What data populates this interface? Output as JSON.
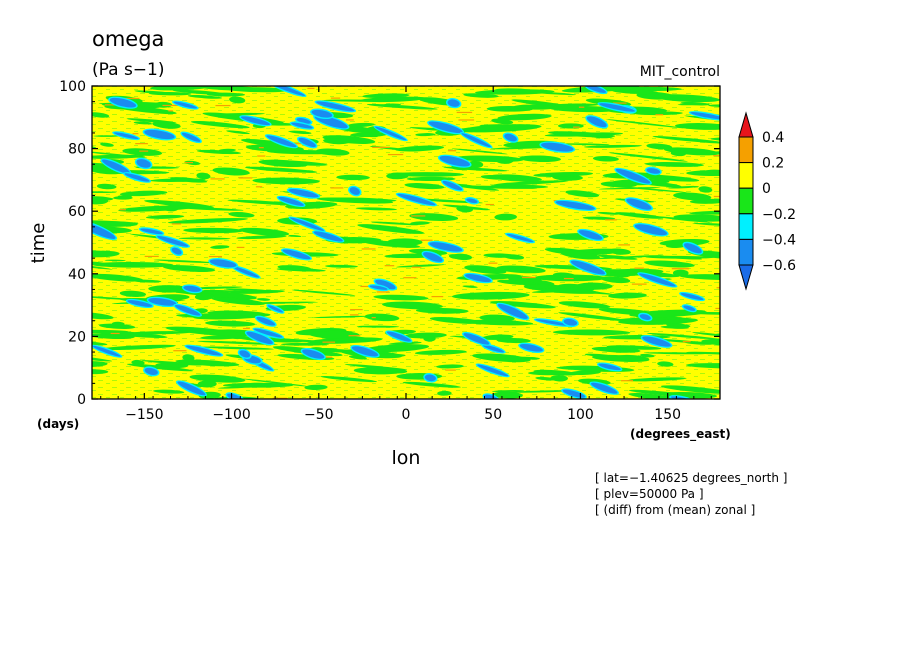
{
  "chart_data": {
    "type": "heatmap",
    "title": "omega",
    "subtitle": "(Pa s−1)",
    "source_label": "MIT_control",
    "xlabel": "lon",
    "ylabel": "time",
    "x_unit": "(degrees_east)",
    "y_unit": "(days)",
    "xlim": [
      -180,
      180
    ],
    "ylim": [
      0,
      100
    ],
    "x_ticks": [
      -150,
      -100,
      -50,
      0,
      50,
      100,
      150
    ],
    "x_tick_labels": [
      "−150",
      "−100",
      "−50",
      "0",
      "50",
      "100",
      "150"
    ],
    "y_ticks": [
      0,
      20,
      40,
      60,
      80,
      100
    ],
    "y_tick_labels": [
      "0",
      "20",
      "40",
      "60",
      "80",
      "100"
    ],
    "colorbar": {
      "levels": [
        0.4,
        0.2,
        0,
        -0.2,
        -0.4,
        -0.6
      ],
      "labels": [
        "0.4",
        "0.2",
        "0",
        "−0.2",
        "−0.4",
        "−0.6"
      ],
      "colors": {
        "above_0.4": "#e8141c",
        "0.2_to_0.4": "#f5a000",
        "0_to_0.2": "#ffff00",
        "-0.2_to_0": "#19e619",
        "-0.4_to_-0.2": "#00f0ff",
        "-0.6_to_-0.4": "#1a8cf0",
        "below_-0.6": "#1a6ce8"
      }
    },
    "annotations": [
      "[ lat=−1.40625 degrees_north ]",
      "[ plev=50000 Pa ]",
      "[ (diff) from (mean) zonal ]"
    ]
  }
}
